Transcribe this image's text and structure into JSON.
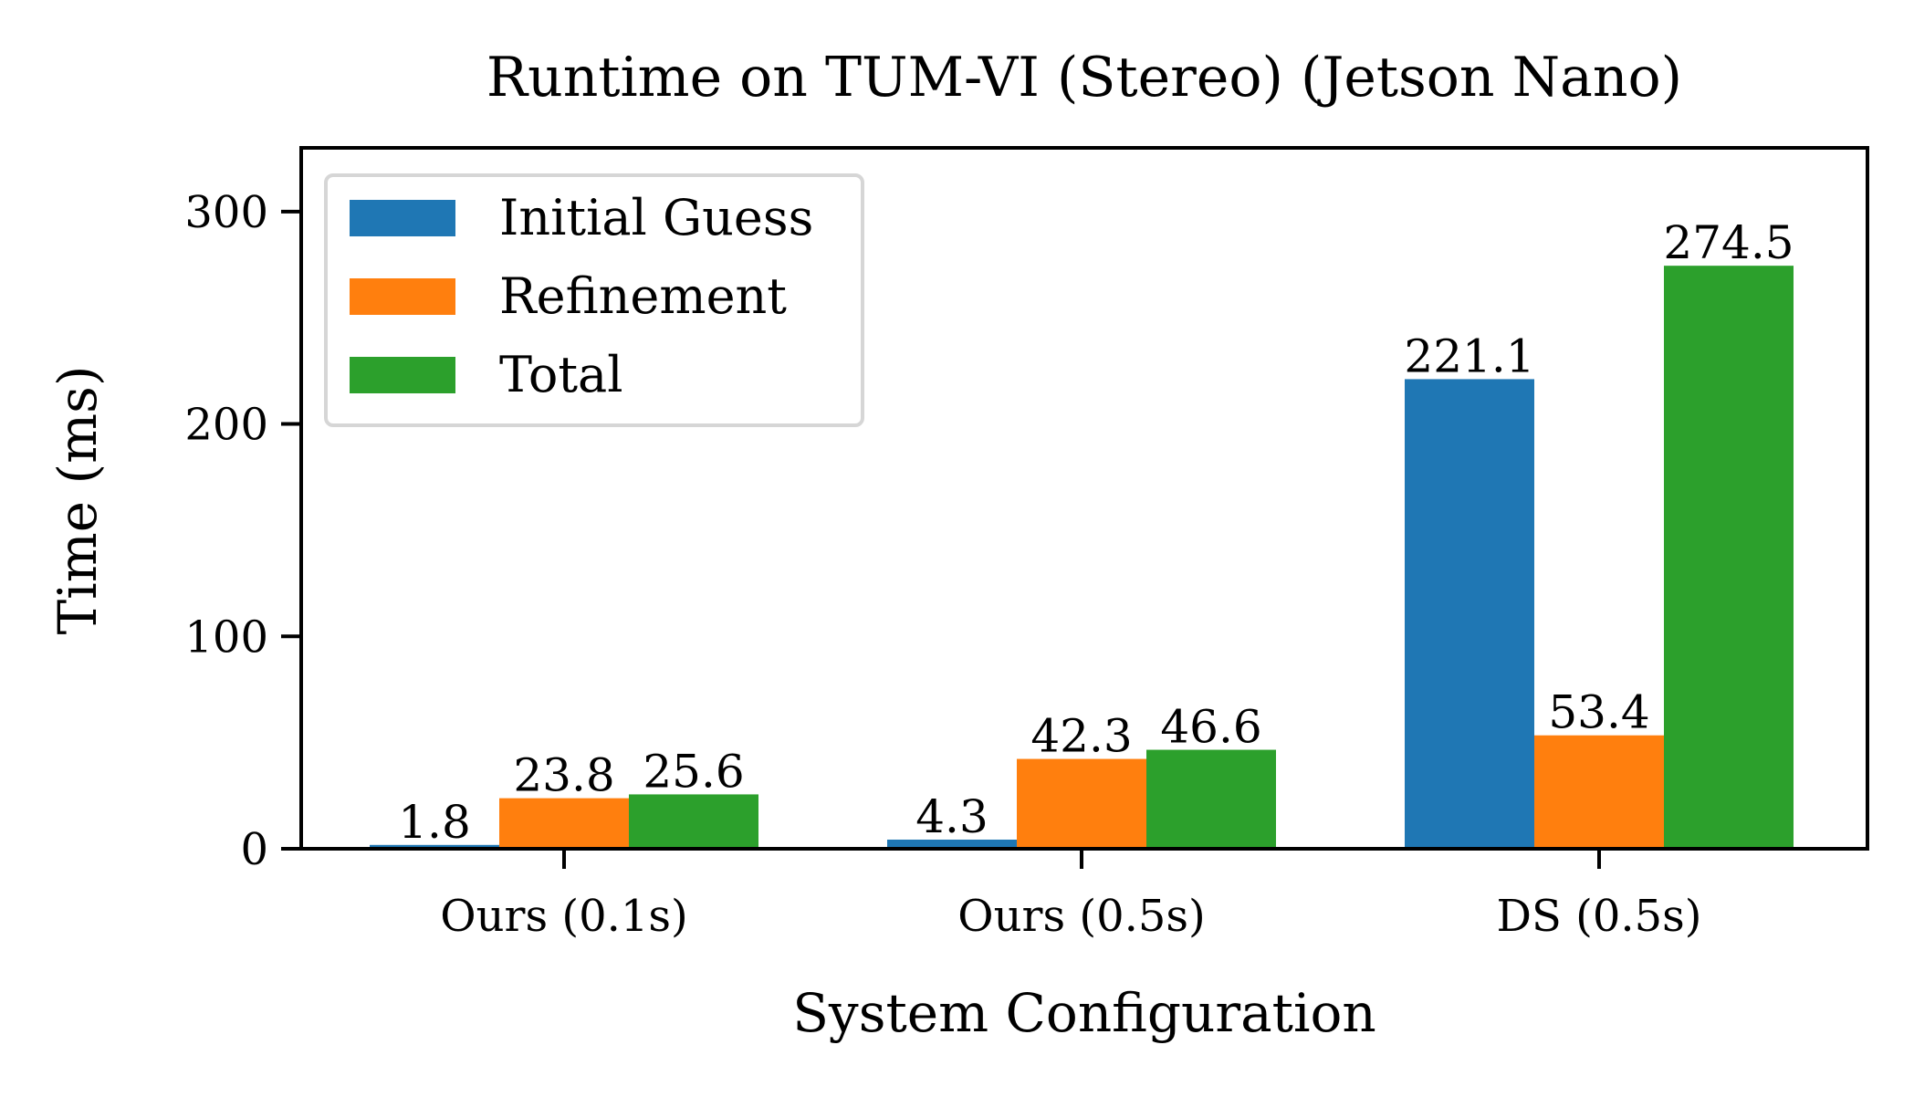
{
  "chart_data": {
    "type": "bar",
    "title": "Runtime on TUM-VI (Stereo) (Jetson Nano)",
    "xlabel": "System Configuration",
    "ylabel": "Time (ms)",
    "categories": [
      "Ours (0.1s)",
      "Ours (0.5s)",
      "DS (0.5s)"
    ],
    "series": [
      {
        "name": "Initial Guess",
        "color": "#1f77b4",
        "values": [
          1.8,
          4.3,
          221.1
        ],
        "labels": [
          "1.8",
          "4.3",
          "221.1"
        ]
      },
      {
        "name": "Refinement",
        "color": "#ff7f0e",
        "values": [
          23.8,
          42.3,
          53.4
        ],
        "labels": [
          "23.8",
          "42.3",
          "53.4"
        ]
      },
      {
        "name": "Total",
        "color": "#2ca02c",
        "values": [
          25.6,
          46.6,
          274.5
        ],
        "labels": [
          "25.6",
          "46.6",
          "274.5"
        ]
      }
    ],
    "ylim": [
      0,
      330
    ],
    "yticks": [
      0,
      100,
      200,
      300
    ],
    "ytick_labels": [
      "0",
      "100",
      "200",
      "300"
    ],
    "grid": false,
    "legend_position": "top-left"
  }
}
